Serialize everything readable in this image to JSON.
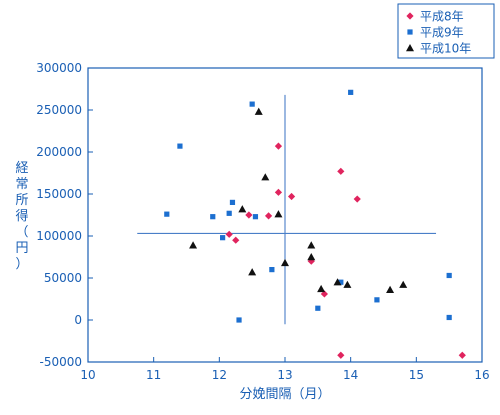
{
  "colors": {
    "axis": "#1a5fb4",
    "text": "#1a5fb4",
    "heisei8": "#e0245e",
    "heisei9": "#1c6fd0",
    "heisei10": "#111111",
    "refline": "#4a7fc8"
  },
  "chart_data": {
    "type": "scatter",
    "xlabel": "分娩間隔（月）",
    "ylabel": "経常所得（円）",
    "xlim": [
      10,
      16
    ],
    "ylim": [
      -50000,
      300000
    ],
    "x_ticks": [
      10,
      11,
      12,
      13,
      14,
      15,
      16
    ],
    "y_ticks": [
      -50000,
      0,
      50000,
      100000,
      150000,
      200000,
      250000,
      300000
    ],
    "grid": false,
    "legend_position": "top-right",
    "reference_lines": {
      "x": 13.0,
      "x_span": [
        -5000,
        268000
      ],
      "y": 103000,
      "y_span": [
        10.75,
        15.3
      ]
    },
    "series": [
      {
        "name": "平成8年",
        "marker": "diamond",
        "color": "#e0245e",
        "points": [
          [
            12.15,
            102000
          ],
          [
            12.25,
            95000
          ],
          [
            12.45,
            125000
          ],
          [
            12.75,
            124000
          ],
          [
            12.9,
            207000
          ],
          [
            12.9,
            152000
          ],
          [
            13.1,
            147000
          ],
          [
            13.4,
            70000
          ],
          [
            13.6,
            31000
          ],
          [
            13.85,
            177000
          ],
          [
            14.1,
            144000
          ],
          [
            13.85,
            -42000
          ],
          [
            15.7,
            -42000
          ]
        ]
      },
      {
        "name": "平成9年",
        "marker": "square",
        "color": "#1c6fd0",
        "points": [
          [
            11.2,
            126000
          ],
          [
            11.4,
            207000
          ],
          [
            11.9,
            123000
          ],
          [
            12.05,
            98000
          ],
          [
            12.15,
            127000
          ],
          [
            12.2,
            140000
          ],
          [
            12.3,
            0
          ],
          [
            12.5,
            257000
          ],
          [
            12.55,
            123000
          ],
          [
            12.8,
            60000
          ],
          [
            13.5,
            14000
          ],
          [
            13.85,
            45000
          ],
          [
            14.0,
            271000
          ],
          [
            14.4,
            24000
          ],
          [
            15.5,
            53000
          ],
          [
            15.5,
            3000
          ]
        ]
      },
      {
        "name": "平成10年",
        "marker": "triangle",
        "color": "#111111",
        "points": [
          [
            11.6,
            89000
          ],
          [
            12.35,
            132000
          ],
          [
            12.5,
            57000
          ],
          [
            12.6,
            248000
          ],
          [
            12.7,
            170000
          ],
          [
            12.9,
            126000
          ],
          [
            13.0,
            68000
          ],
          [
            13.4,
            89000
          ],
          [
            13.4,
            75000
          ],
          [
            13.55,
            37000
          ],
          [
            13.8,
            45000
          ],
          [
            13.95,
            42000
          ],
          [
            14.6,
            36000
          ],
          [
            14.8,
            42000
          ]
        ]
      }
    ]
  }
}
